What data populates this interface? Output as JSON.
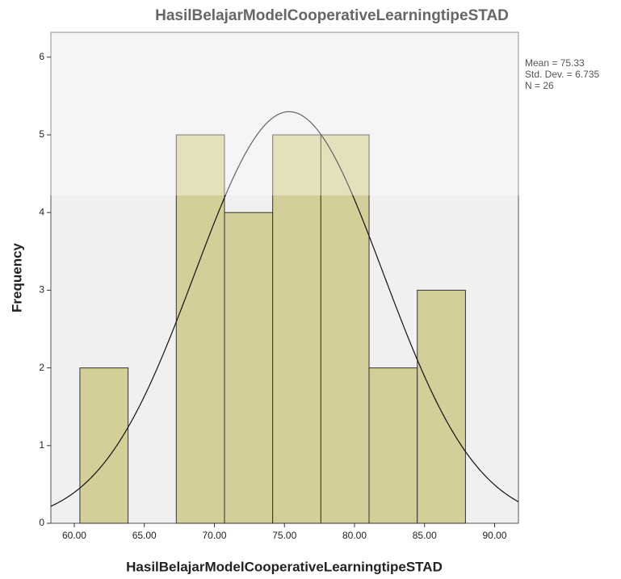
{
  "chart_data": {
    "type": "histogram",
    "title": "HasilBelajarModelCooperativeLearningtipeSTAD",
    "x_label": "HasilBelajarModelCooperativeLearningtipeSTAD",
    "y_label": "Frequency",
    "bins": [
      60.4,
      63.84,
      67.28,
      70.72,
      74.16,
      77.6,
      81.04,
      84.48,
      87.92
    ],
    "counts": [
      2,
      0,
      5,
      4,
      5,
      5,
      2,
      3
    ],
    "color": "#d4cf98",
    "curve_color": "#111111",
    "stats": {
      "values": [
        75.33,
        6.735,
        26
      ],
      "value_labels": [
        "Mean = 75.33",
        "Std. Dev. = 6.735",
        "N = 26"
      ]
    },
    "xlim": [
      58.33,
      91.7
    ],
    "ylim": [
      0,
      6.32
    ],
    "xticks": [
      {
        "value": 60,
        "label": "60.00"
      },
      {
        "value": 65,
        "label": "65.00"
      },
      {
        "value": 70,
        "label": "70.00"
      },
      {
        "value": 75,
        "label": "75.00"
      },
      {
        "value": 80,
        "label": "80.00"
      },
      {
        "value": 85,
        "label": "85.00"
      },
      {
        "value": 90,
        "label": "90.00"
      }
    ],
    "yticks": [
      0,
      1,
      2,
      3,
      4,
      5,
      6
    ]
  }
}
